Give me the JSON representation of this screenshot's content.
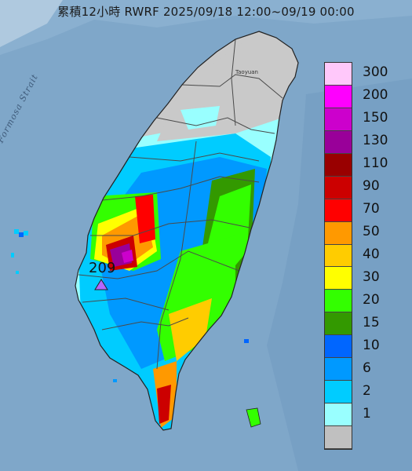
{
  "title": "累積12小時 RWRF 2025/09/18 12:00~09/19 00:00",
  "strait_label": "Formosa Strait",
  "city_label": "Taoyuan",
  "max_value_label": "209",
  "legend": [
    {
      "label": "300",
      "color": "#ffc8fa"
    },
    {
      "label": "200",
      "color": "#fe00fe"
    },
    {
      "label": "150",
      "color": "#cc00cc"
    },
    {
      "label": "130",
      "color": "#990099"
    },
    {
      "label": "110",
      "color": "#990000"
    },
    {
      "label": "90",
      "color": "#cc0000"
    },
    {
      "label": "70",
      "color": "#ff0000"
    },
    {
      "label": "50",
      "color": "#ff9900"
    },
    {
      "label": "40",
      "color": "#ffcc00"
    },
    {
      "label": "30",
      "color": "#ffff00"
    },
    {
      "label": "20",
      "color": "#33ff00"
    },
    {
      "label": "15",
      "color": "#339900"
    },
    {
      "label": "10",
      "color": "#0066ff"
    },
    {
      "label": "6",
      "color": "#0099ff"
    },
    {
      "label": "2",
      "color": "#00ccff"
    },
    {
      "label": "1",
      "color": "#99ffff"
    },
    {
      "label": "",
      "color": "#c0c0c0"
    }
  ],
  "colors": {
    "sea": "#7fa7c9",
    "land": "#c9c9c9",
    "max_marker": "#b266ff"
  }
}
